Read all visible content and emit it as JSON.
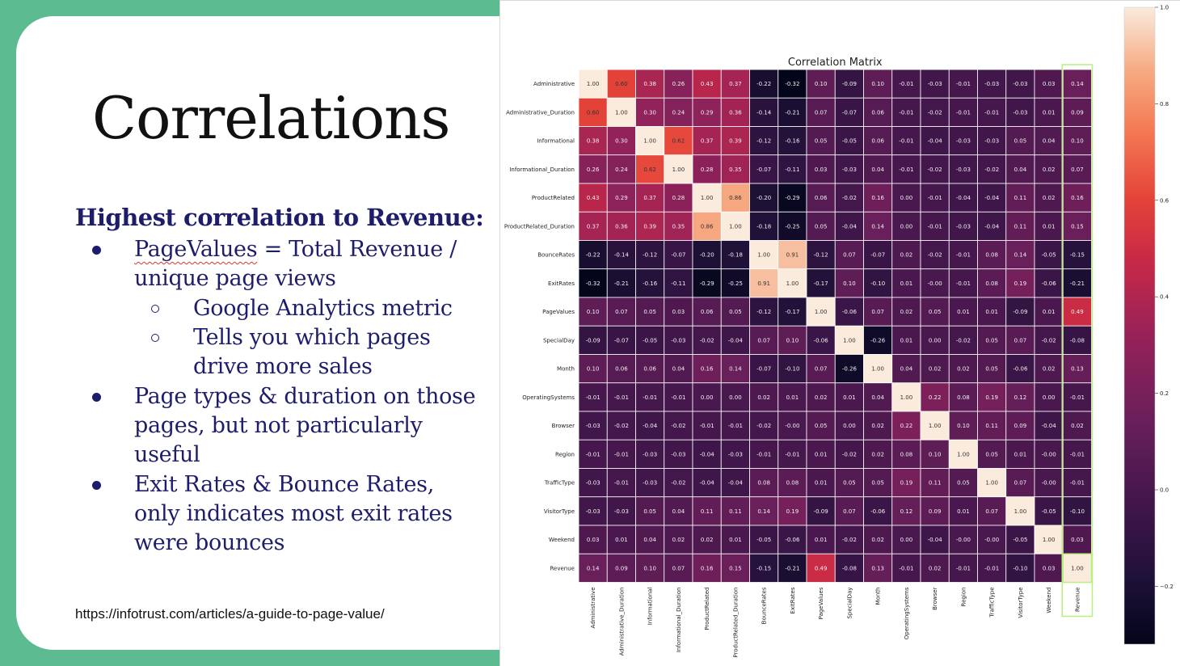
{
  "slide": {
    "title": "Correlations",
    "subheading": "Highest correlation to Revenue:",
    "bullets": [
      {
        "level": 1,
        "lines": [
          "PageValues = Total Revenue /",
          "unique page views"
        ],
        "underline_word": "PageValues"
      },
      {
        "level": 2,
        "lines": [
          "Google Analytics metric"
        ]
      },
      {
        "level": 2,
        "lines": [
          "Tells you which pages",
          "drive more sales"
        ]
      },
      {
        "level": 1,
        "lines": [
          "Page types & duration on those",
          "pages, but not particularly",
          "useful"
        ]
      },
      {
        "level": 1,
        "lines": [
          "Exit Rates & Bounce Rates,",
          "only indicates most exit rates",
          "were bounces"
        ]
      }
    ],
    "source_url": "https://infotrust.com/articles/a-guide-to-page-value/",
    "colors": {
      "accent_green": "#5dbb91",
      "text_navy": "#1d1d6b",
      "highlight_box": "#b7f07a"
    }
  },
  "chart_data": {
    "type": "heatmap",
    "title": "Correlation Matrix",
    "labels": [
      "Administrative",
      "Administrative_Duration",
      "Informational",
      "Informational_Duration",
      "ProductRelated",
      "ProductRelated_Duration",
      "BounceRates",
      "ExitRates",
      "PageValues",
      "SpecialDay",
      "Month",
      "OperatingSystems",
      "Browser",
      "Region",
      "TrafficType",
      "VisitorType",
      "Weekend",
      "Revenue"
    ],
    "matrix": [
      [
        1.0,
        0.6,
        0.38,
        0.26,
        0.43,
        0.37,
        -0.22,
        -0.32,
        0.1,
        -0.09,
        0.1,
        -0.01,
        -0.03,
        -0.01,
        -0.03,
        -0.03,
        0.03,
        0.14
      ],
      [
        0.6,
        1.0,
        0.3,
        0.24,
        0.29,
        0.36,
        -0.14,
        -0.21,
        0.07,
        -0.07,
        0.06,
        -0.01,
        -0.02,
        -0.01,
        -0.01,
        -0.03,
        0.01,
        0.09
      ],
      [
        0.38,
        0.3,
        1.0,
        0.62,
        0.37,
        0.39,
        -0.12,
        -0.16,
        0.05,
        -0.05,
        0.06,
        -0.01,
        -0.04,
        -0.03,
        -0.03,
        0.05,
        0.04,
        0.1
      ],
      [
        0.26,
        0.24,
        0.62,
        1.0,
        0.28,
        0.35,
        -0.07,
        -0.11,
        0.03,
        -0.03,
        0.04,
        -0.01,
        -0.02,
        -0.03,
        -0.02,
        0.04,
        0.02,
        0.07
      ],
      [
        0.43,
        0.29,
        0.37,
        0.28,
        1.0,
        0.86,
        -0.2,
        -0.29,
        0.06,
        -0.02,
        0.16,
        0.0,
        -0.01,
        -0.04,
        -0.04,
        0.11,
        0.02,
        0.16
      ],
      [
        0.37,
        0.36,
        0.39,
        0.35,
        0.86,
        1.0,
        -0.18,
        -0.25,
        0.05,
        -0.04,
        0.14,
        0.0,
        -0.01,
        -0.03,
        -0.04,
        0.11,
        0.01,
        0.15
      ],
      [
        -0.22,
        -0.14,
        -0.12,
        -0.07,
        -0.2,
        -0.18,
        1.0,
        0.91,
        -0.12,
        0.07,
        -0.07,
        0.02,
        -0.02,
        -0.01,
        0.08,
        0.14,
        -0.05,
        -0.15
      ],
      [
        -0.32,
        -0.21,
        -0.16,
        -0.11,
        -0.29,
        -0.25,
        0.91,
        1.0,
        -0.17,
        0.1,
        -0.1,
        0.01,
        -0.0,
        -0.01,
        0.08,
        0.19,
        -0.06,
        -0.21
      ],
      [
        0.1,
        0.07,
        0.05,
        0.03,
        0.06,
        0.05,
        -0.12,
        -0.17,
        1.0,
        -0.06,
        0.07,
        0.02,
        0.05,
        0.01,
        0.01,
        -0.09,
        0.01,
        0.49
      ],
      [
        -0.09,
        -0.07,
        -0.05,
        -0.03,
        -0.02,
        -0.04,
        0.07,
        0.1,
        -0.06,
        1.0,
        -0.26,
        0.01,
        0.0,
        -0.02,
        0.05,
        0.07,
        -0.02,
        -0.08
      ],
      [
        0.1,
        0.06,
        0.06,
        0.04,
        0.16,
        0.14,
        -0.07,
        -0.1,
        0.07,
        -0.26,
        1.0,
        0.04,
        0.02,
        0.02,
        0.05,
        -0.06,
        0.02,
        0.13
      ],
      [
        -0.01,
        -0.01,
        -0.01,
        -0.01,
        0.0,
        0.0,
        0.02,
        0.01,
        0.02,
        0.01,
        0.04,
        1.0,
        0.22,
        0.08,
        0.19,
        0.12,
        0.0,
        -0.01
      ],
      [
        -0.03,
        -0.02,
        -0.04,
        -0.02,
        -0.01,
        -0.01,
        -0.02,
        -0.0,
        0.05,
        0.0,
        0.02,
        0.22,
        1.0,
        0.1,
        0.11,
        0.09,
        -0.04,
        0.02
      ],
      [
        -0.01,
        -0.01,
        -0.03,
        -0.03,
        -0.04,
        -0.03,
        -0.01,
        -0.01,
        0.01,
        -0.02,
        0.02,
        0.08,
        0.1,
        1.0,
        0.05,
        0.01,
        -0.0,
        -0.01
      ],
      [
        -0.03,
        -0.01,
        -0.03,
        -0.02,
        -0.04,
        -0.04,
        0.08,
        0.08,
        0.01,
        0.05,
        0.05,
        0.19,
        0.11,
        0.05,
        1.0,
        0.07,
        -0.0,
        -0.01
      ],
      [
        -0.03,
        -0.03,
        0.05,
        0.04,
        0.11,
        0.11,
        0.14,
        0.19,
        -0.09,
        0.07,
        -0.06,
        0.12,
        0.09,
        0.01,
        0.07,
        1.0,
        -0.05,
        -0.1
      ],
      [
        0.03,
        0.01,
        0.04,
        0.02,
        0.02,
        0.01,
        -0.05,
        -0.06,
        0.01,
        -0.02,
        0.02,
        0.0,
        -0.04,
        -0.0,
        -0.0,
        -0.05,
        1.0,
        0.03
      ],
      [
        0.14,
        0.09,
        0.1,
        0.07,
        0.16,
        0.15,
        -0.15,
        -0.21,
        0.49,
        -0.08,
        0.13,
        -0.01,
        0.02,
        -0.01,
        -0.01,
        -0.1,
        0.03,
        1.0
      ]
    ],
    "highlighted_column": "Revenue",
    "colorbar": {
      "ticks": [
        "1.0",
        "0.8",
        "0.6",
        "0.4",
        "0.2",
        "0.0",
        "−0.2"
      ],
      "tick_values": [
        1.0,
        0.8,
        0.6,
        0.4,
        0.2,
        0.0,
        -0.2
      ],
      "range": [
        -0.32,
        1.0
      ]
    },
    "colormap": "rocket"
  }
}
